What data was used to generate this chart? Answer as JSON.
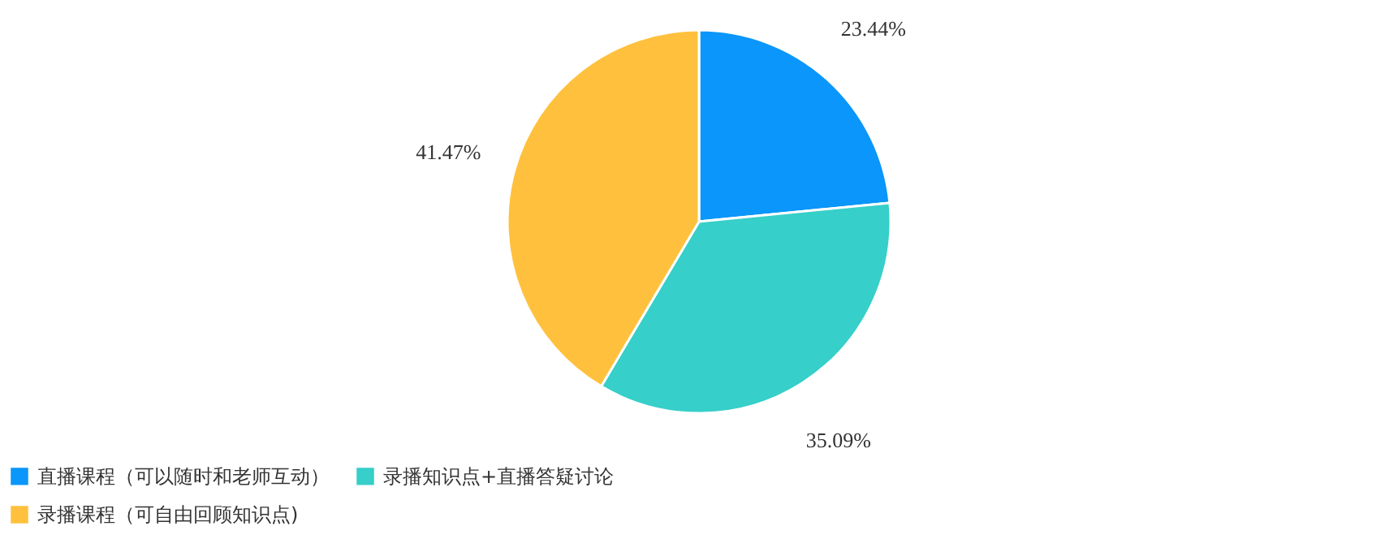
{
  "chart_data": {
    "type": "pie",
    "categories": [
      "直播课程（可以随时和老师互动）",
      "录播知识点+直播答疑讨论",
      "录播课程（可自由回顾知识点)"
    ],
    "values": [
      23.44,
      35.09,
      41.47
    ],
    "colors": [
      "#0a96fa",
      "#36cfc9",
      "#ffc13d"
    ],
    "value_labels": [
      "23.44%",
      "35.09%",
      "41.47%"
    ],
    "legend": "bottom"
  }
}
